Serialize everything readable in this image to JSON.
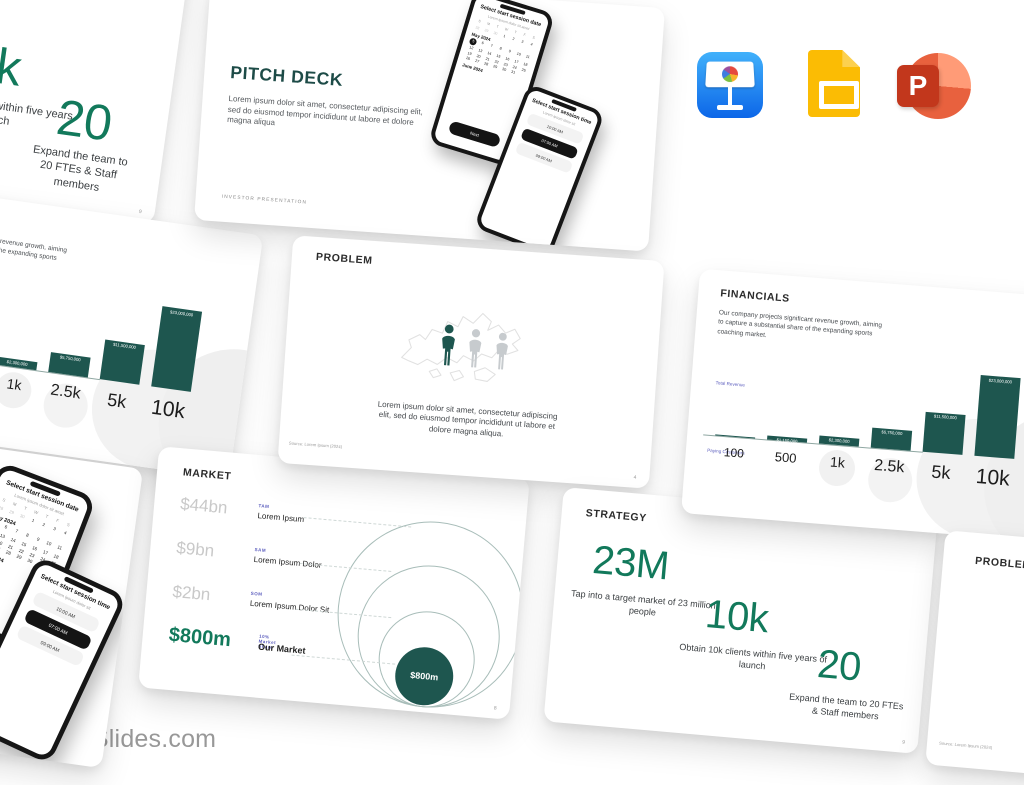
{
  "brand": {
    "site": "MakeSlides.com"
  },
  "app_icons": [
    {
      "id": "keynote-icon",
      "app": "Keynote"
    },
    {
      "id": "google-slides-icon",
      "app": "Google Slides"
    },
    {
      "id": "powerpoint-icon",
      "app": "PowerPoint",
      "letter": "P"
    }
  ],
  "colors": {
    "accent_teal": "#1E564F",
    "accent_green": "#12795B",
    "accent_purple": "#5C5EBE",
    "value_gray": "#C9C9C9",
    "brand_gray": "#989898"
  },
  "slides": {
    "cover": {
      "title": "PITCH DECK",
      "body": "Lorem ipsum dolor sit amet, consectetur adipiscing elit, sed do eiusmod tempor incididunt ut labore et dolore magna aliqua",
      "footer": "INVESTOR  PRESENTATION",
      "phone_date": {
        "heading": "Select start session date",
        "subheading": "Lorem ipsum dolor sit amet",
        "weekdays": [
          "S",
          "M",
          "T",
          "W",
          "T",
          "F",
          "S"
        ],
        "prev_days": [
          "28",
          "29",
          "30"
        ],
        "lead_days": [
          "1",
          "2",
          "3",
          "4"
        ],
        "month": "May 2024",
        "next_month": "June 2024",
        "grid_start": 5,
        "grid_end": 31,
        "selected_day": "5",
        "cta": "Next"
      },
      "phone_time": {
        "heading": "Select start session time",
        "subheading": "Lorem ipsum dolor sit",
        "times": [
          "10:00 AM",
          "07:00 AM",
          "09:00 AM"
        ],
        "selected_index": 1
      }
    },
    "problem": {
      "title": "PROBLEM",
      "body": "Lorem ipsum dolor sit amet, consectetur adipiscing elit, sed do eiusmod tempor incididunt ut labore et dolore magna aliqua.",
      "source": "Source: Lorem Ipsum (2024)",
      "page": "4"
    },
    "financials": {
      "title": "FINANCIALS",
      "body": "Our company projects significant revenue growth, aiming to capture a substantial share of the expanding sports coaching market.",
      "page": "7"
    },
    "market": {
      "title": "MARKET",
      "rows": [
        {
          "value": "$44bn",
          "tag": "TAM",
          "name": "Lorem Ipsum"
        },
        {
          "value": "$9bn",
          "tag": "SAM",
          "name": "Lorem Ipsum Dolor"
        },
        {
          "value": "$2bn",
          "tag": "SOM",
          "name": "Lorem Ipsum Dolor Sit"
        },
        {
          "value": "$800m",
          "tag": "10% Market Share",
          "name": "Our Market"
        }
      ],
      "bubble": "$800m",
      "page": "8"
    },
    "strategy": {
      "title": "STRATEGY",
      "stats": [
        {
          "value": "23M",
          "caption": "Tap into a target market of 23 million people"
        },
        {
          "value": "10k",
          "caption": "Obtain 10k clients within five years of launch"
        },
        {
          "value": "20",
          "caption": "Expand the team to 20 FTEs & Staff members"
        }
      ],
      "page": "9"
    }
  },
  "chart_data": {
    "type": "bar",
    "title": "FINANCIALS",
    "categories": [
      "100",
      "500",
      "1k",
      "2.5k",
      "5k",
      "10k"
    ],
    "values": [
      230000,
      1150000,
      2300000,
      5750000,
      11500000,
      23000000
    ],
    "value_labels": [
      "",
      "$1,150,000",
      "$2,300,000",
      "$5,750,000",
      "$11,500,000",
      "$23,000,000"
    ],
    "xlabel": "Paying Customers",
    "ylabel": "Total Revenue",
    "ylim": [
      0,
      23000000
    ],
    "grid": false,
    "legend": false,
    "bar_color": "#1E564F"
  }
}
